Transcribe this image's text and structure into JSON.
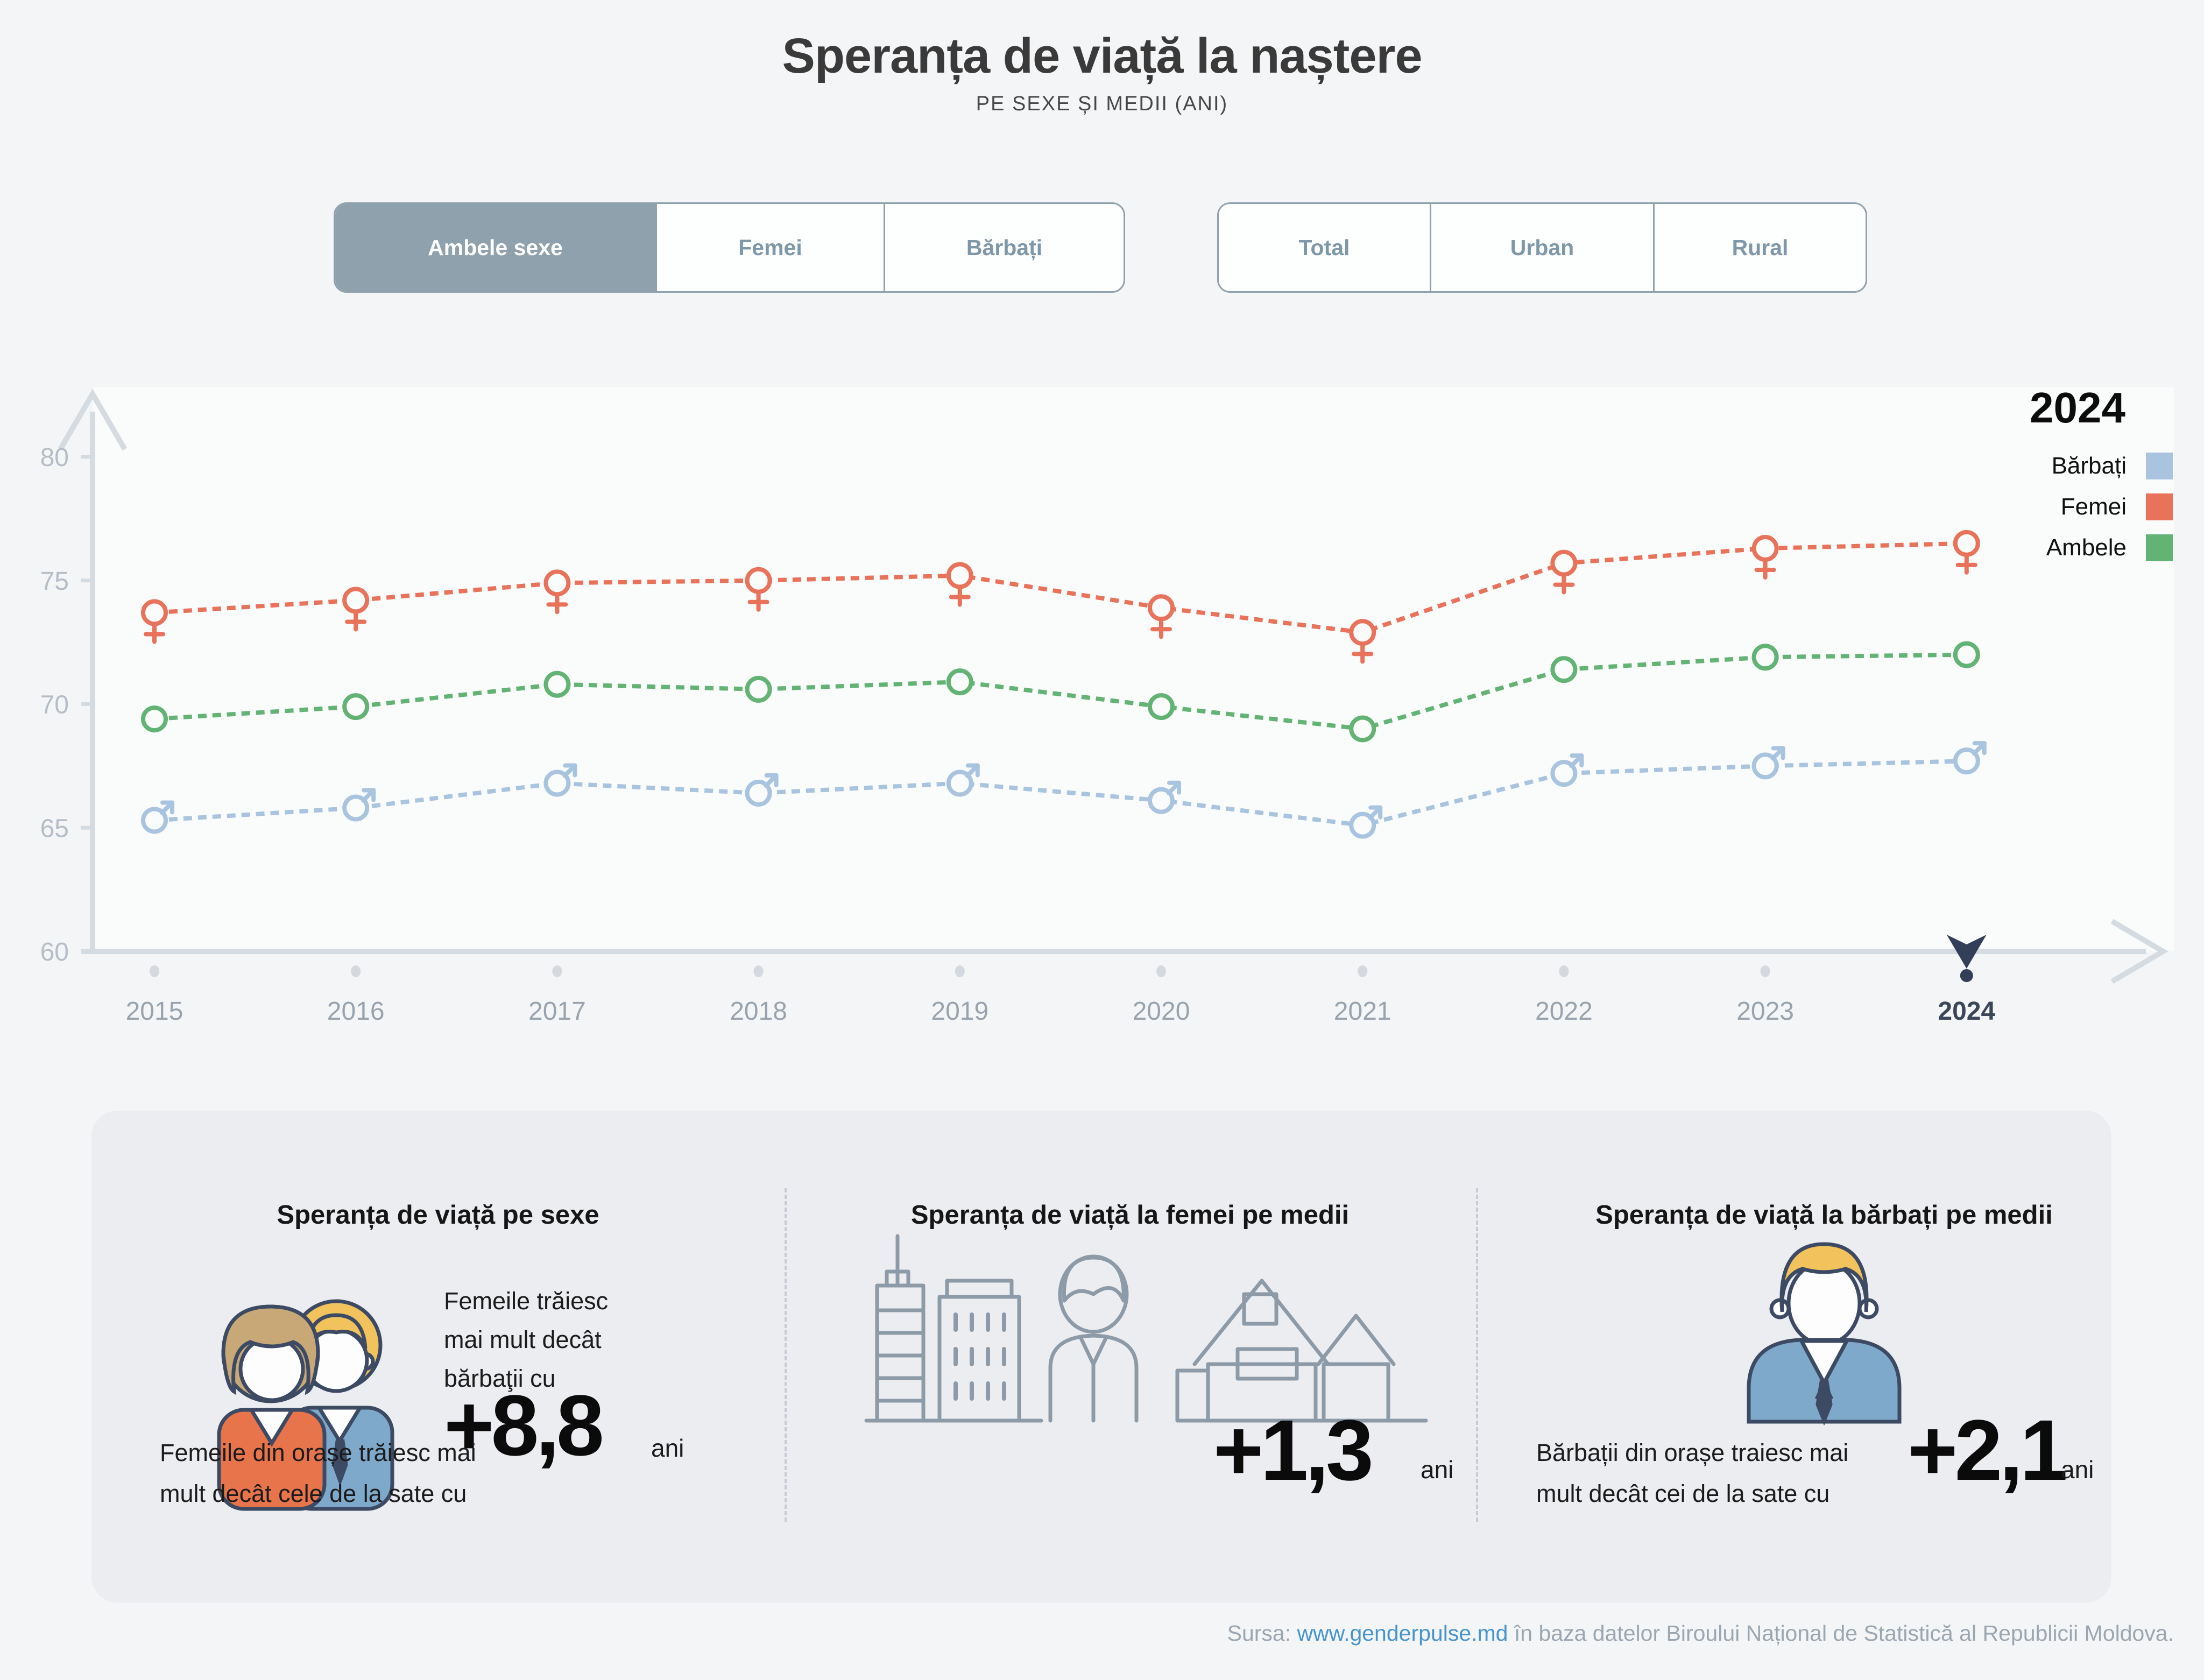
{
  "title": "Speranța de viață la naștere",
  "subtitle": "PE SEXE ȘI MEDII (ANI)",
  "toggles": {
    "sex": {
      "items": [
        {
          "label": "Ambele sexe",
          "selected": true
        },
        {
          "label": "Femei",
          "selected": false
        },
        {
          "label": "Bărbați",
          "selected": false
        }
      ]
    },
    "medii": {
      "items": [
        {
          "label": "Total",
          "selected": false
        },
        {
          "label": "Urban",
          "selected": false
        },
        {
          "label": "Rural",
          "selected": false
        }
      ]
    }
  },
  "legend": {
    "year": "2024",
    "items": [
      {
        "label": "Bărbați",
        "color": "#a9c4de"
      },
      {
        "label": "Femei",
        "color": "#e8725a"
      },
      {
        "label": "Ambele",
        "color": "#63b375"
      }
    ]
  },
  "chart_data": {
    "type": "line",
    "x": [
      2015,
      2016,
      2017,
      2018,
      2019,
      2020,
      2021,
      2022,
      2023,
      2024
    ],
    "xlabel": "",
    "ylabel": "",
    "ylim": [
      60,
      80
    ],
    "yticks": [
      60,
      65,
      70,
      75,
      80
    ],
    "grid": false,
    "legend_position": "top-right",
    "highlight_x": 2024,
    "series": [
      {
        "name": "Femei",
        "color": "#e8725a",
        "marker": "female",
        "values": [
          73.7,
          74.2,
          74.9,
          75.0,
          75.2,
          73.9,
          72.9,
          75.7,
          76.3,
          76.5
        ]
      },
      {
        "name": "Ambele",
        "color": "#63b375",
        "marker": "circle",
        "values": [
          69.4,
          69.9,
          70.8,
          70.6,
          70.9,
          69.9,
          69.0,
          71.4,
          71.9,
          72.0
        ]
      },
      {
        "name": "Bărbați",
        "color": "#a9c4de",
        "marker": "male",
        "values": [
          65.3,
          65.8,
          66.8,
          66.4,
          66.8,
          66.1,
          65.1,
          67.2,
          67.5,
          67.7
        ]
      }
    ]
  },
  "cards": [
    {
      "title": "Speranța de viață pe sexe",
      "text_lines": [
        "Femeile trăiesc",
        "mai mult decât",
        "bărbaţii cu"
      ],
      "value": "+8,8",
      "unit": "ani"
    },
    {
      "title": "Speranța de viață la femei pe medii",
      "text_lines": [
        "Femeile din orașe trăiesc mai",
        "mult decât cele de la sate cu"
      ],
      "value": "+1,3",
      "unit": "ani"
    },
    {
      "title": "Speranța de viață la bărbați pe medii",
      "text_lines": [
        "Bărbații din orașe traiesc mai",
        "mult decât cei de la sate cu"
      ],
      "value": "+2,1",
      "unit": "ani"
    }
  ],
  "footer": {
    "prefix": "Sursa: ",
    "link": "www.genderpulse.md",
    "suffix": " în baza datelor Biroului Național de Statistică al Republicii Moldova."
  },
  "colors": {
    "page_bg": "#f4f5f7",
    "plot_bg": "#fafbfb",
    "cards_bg": "#ecedf1",
    "axis": "#d4dce2",
    "toggle_accent": "#8fa1ad",
    "ytick_label": "#b5bdc7",
    "xtick_label": "#98a3ae",
    "highlight_label": "#3b4759",
    "cursor": "#333f58",
    "link": "#4694cd"
  }
}
